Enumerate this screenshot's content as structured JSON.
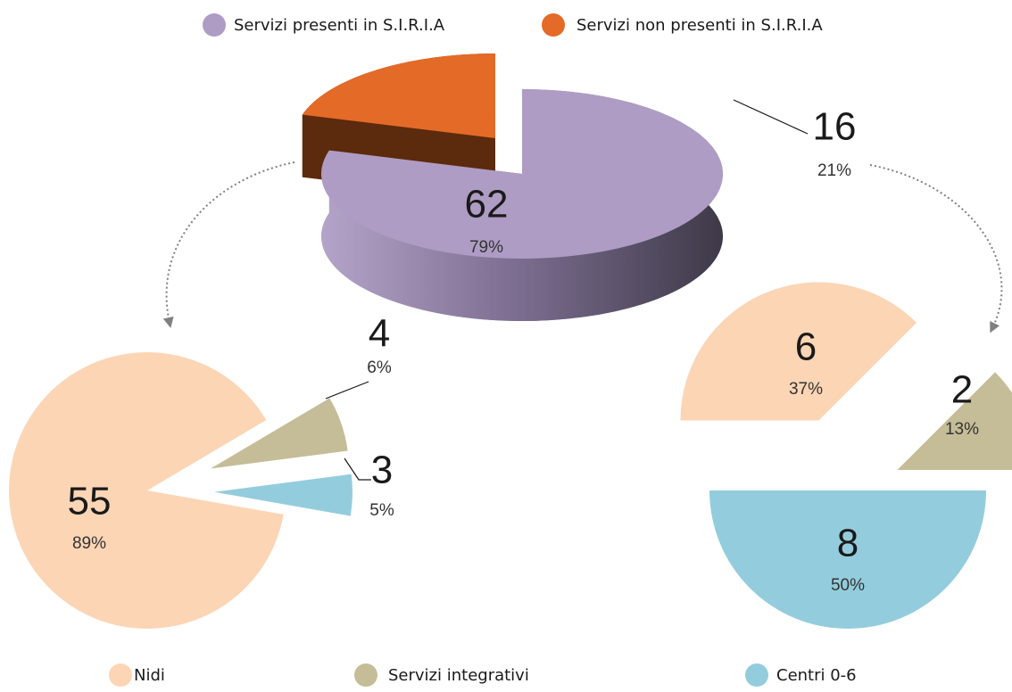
{
  "chart_data": [
    {
      "type": "pie3d",
      "categories": [
        "Servizi presenti in S.I.R.I.A",
        "Servizi non presenti in S.I.R.I.A"
      ],
      "values": [
        62,
        16
      ],
      "shares": [
        "79%",
        "21%"
      ],
      "colors": [
        "#ae9cc4",
        "#e46a27"
      ]
    },
    {
      "type": "pie",
      "categories": [
        "Nidi",
        "Servizi integrativi",
        "Centri 0-6"
      ],
      "values": [
        55,
        4,
        3
      ],
      "shares": [
        "89%",
        "6%",
        "5%"
      ],
      "colors": [
        "#fcd5b5",
        "#c4bd97",
        "#93cddd"
      ]
    },
    {
      "type": "pie",
      "categories": [
        "Nidi",
        "Servizi integrativi",
        "Centri 0-6"
      ],
      "values": [
        6,
        2,
        8
      ],
      "shares": [
        "37%",
        "13%",
        "50%"
      ],
      "colors": [
        "#fcd5b5",
        "#c4bd97",
        "#93cddd"
      ]
    }
  ]
}
